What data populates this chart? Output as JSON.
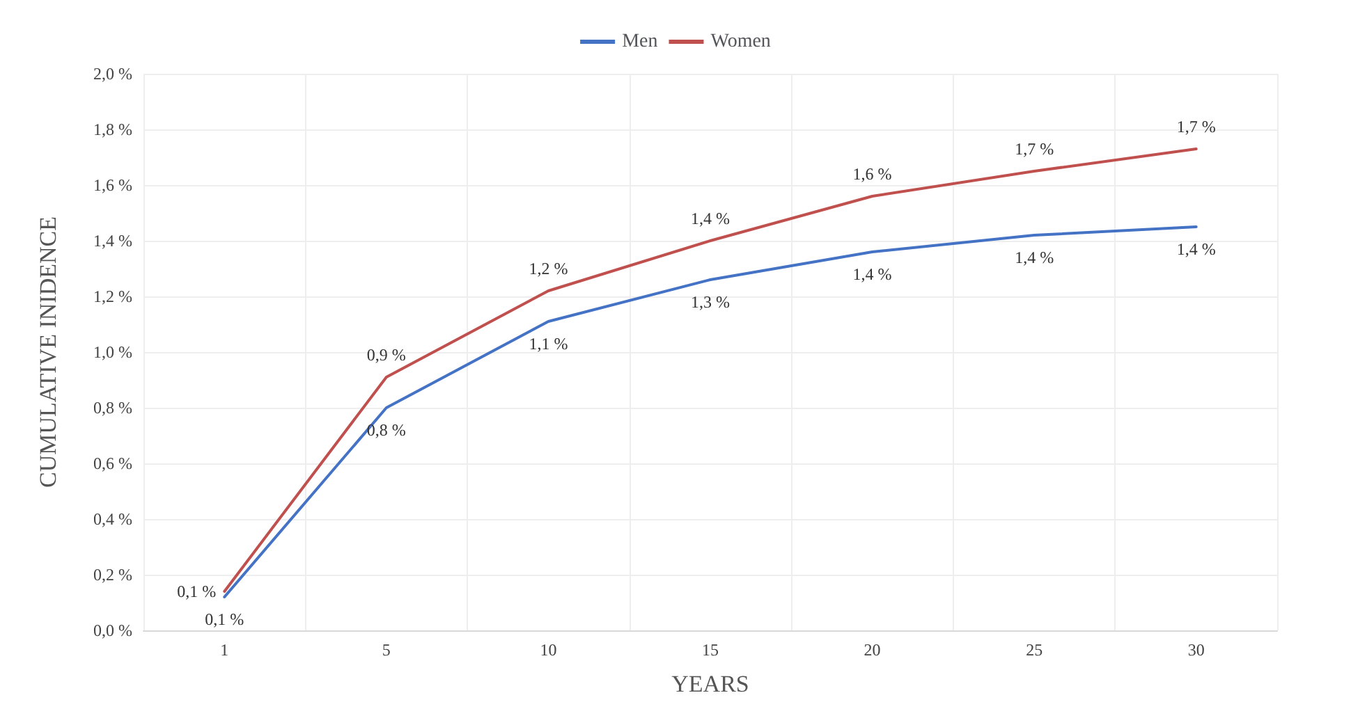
{
  "chart_data": {
    "type": "line",
    "xlabel": "YEARS",
    "ylabel": "CUMULATIVE INIDENCE",
    "categories": [
      "1",
      "5",
      "10",
      "15",
      "20",
      "25",
      "30"
    ],
    "series": [
      {
        "name": "Men",
        "color": "#4472c4",
        "values": [
          0.12,
          0.8,
          1.11,
          1.26,
          1.36,
          1.42,
          1.45
        ],
        "value_labels": [
          "0,1 %",
          "0,8 %",
          "1,1 %",
          "1,3 %",
          "1,4 %",
          "1,4 %",
          "1,4 %"
        ]
      },
      {
        "name": "Women",
        "color": "#c0504d",
        "values": [
          0.14,
          0.91,
          1.22,
          1.4,
          1.56,
          1.65,
          1.73
        ],
        "value_labels": [
          "0,1 %",
          "0,9 %",
          "1,2 %",
          "1,4 %",
          "1,6 %",
          "1,7 %",
          "1,7 %"
        ]
      }
    ],
    "ylim": [
      0,
      2
    ],
    "yticks": [
      {
        "value": 0,
        "label": "0,0 %"
      },
      {
        "value": 0.2,
        "label": "0,2 %"
      },
      {
        "value": 0.4,
        "label": "0,4 %"
      },
      {
        "value": 0.6,
        "label": "0,6 %"
      },
      {
        "value": 0.8,
        "label": "0,8 %"
      },
      {
        "value": 1,
        "label": "1,0 %"
      },
      {
        "value": 1.2,
        "label": "1,2 %"
      },
      {
        "value": 1.4,
        "label": "1,4 %"
      },
      {
        "value": 1.6,
        "label": "1,6 %"
      },
      {
        "value": 1.8,
        "label": "1,8 %"
      },
      {
        "value": 2,
        "label": "2,0 %"
      }
    ],
    "grid": true,
    "legend": "top",
    "marker": "none",
    "line_style": "solid"
  }
}
